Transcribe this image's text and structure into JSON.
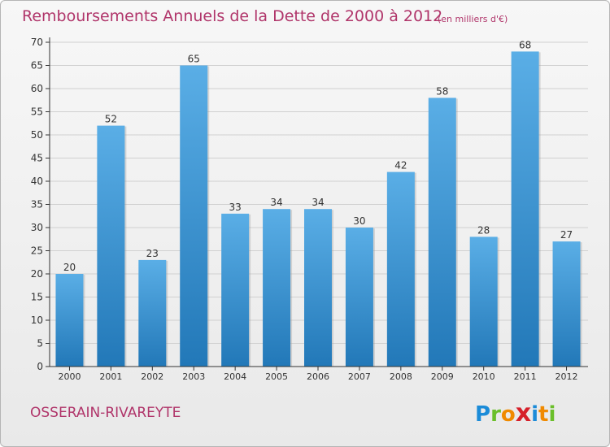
{
  "header": {
    "title": "Remboursements Annuels de la Dette de 2000 à 2012",
    "subtitle": "(en milliers d'€)"
  },
  "footer": {
    "commune": "OSSERAIN-RIVAREYTE",
    "logo_letters": [
      "P",
      "r",
      "o",
      "x",
      "i",
      "t",
      "i"
    ],
    "logo_colors": [
      "#1b8bd8",
      "#6bbf2a",
      "#f08a00",
      "#d6202a",
      "#1b8bd8",
      "#f08a00",
      "#6bbf2a"
    ]
  },
  "colors": {
    "title": "#b0356a",
    "bar_top": "#5aaee6",
    "bar_bottom": "#2278b8",
    "axis": "#333333",
    "grid": "#d0d0d0"
  },
  "chart_data": {
    "type": "bar",
    "title": "Remboursements Annuels de la Dette de 2000 à 2012",
    "subtitle": "(en milliers d'€)",
    "categories": [
      "2000",
      "2001",
      "2002",
      "2003",
      "2004",
      "2005",
      "2006",
      "2007",
      "2008",
      "2009",
      "2010",
      "2011",
      "2012"
    ],
    "values": [
      20,
      52,
      23,
      65,
      33,
      34,
      34,
      30,
      42,
      58,
      28,
      68,
      27
    ],
    "ylim": [
      0,
      70
    ],
    "yticks": [
      0,
      5,
      10,
      15,
      20,
      25,
      30,
      35,
      40,
      45,
      50,
      55,
      60,
      65,
      70
    ],
    "grid": true,
    "data_labels": true
  }
}
